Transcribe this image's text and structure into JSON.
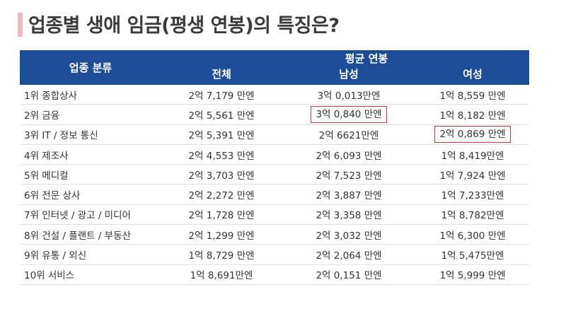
{
  "title": "업종별 생애 임금(평생 연봉)의 특징은?",
  "header": {
    "category": "업종 분류",
    "average": "평균 연봉",
    "total": "전체",
    "male": "남성",
    "female": "여성"
  },
  "rows": [
    {
      "name": "1위 종합상사",
      "total": "2억 7,179 만엔",
      "male": "3억 0,013만엔",
      "female": "1억 8,559 만엔"
    },
    {
      "name": "2위 금융",
      "total": "2억 5,561 만엔",
      "male": "3억 0,840 만엔",
      "female": "1억 8,182 만엔"
    },
    {
      "name": "3위 IT / 정보 통신",
      "total": "2억 5,391 만엔",
      "male": "2억 6621만엔",
      "female": "2억  0,869 만엔"
    },
    {
      "name": "4위 제조사",
      "total": "2억 4,553 만엔",
      "male": "2억 6,093 만엔",
      "female": "1억 8,419만엔"
    },
    {
      "name": "5위 메디컬",
      "total": "2억 3,703 만엔",
      "male": "2억 7,523 만엔",
      "female": "1억 7,924 만엔"
    },
    {
      "name": "6위 전문 상사",
      "total": "2억 2,272 만엔",
      "male": "2억 3,887 만엔",
      "female": "1억 7,233만엔"
    },
    {
      "name": "7위 인터넷 / 광고 / 미디어",
      "total": "2억 1,728 만엔",
      "male": "2억 3,358 만엔",
      "female": "1억 8,782만엔"
    },
    {
      "name": "8위 건설 / 플랜트 / 부동산",
      "total": "2억 1,299 만엔",
      "male": "2억 3,032 만엔",
      "female": "1억 6,300 만엔"
    },
    {
      "name": "9위 유통 / 외신",
      "total": "1억 8,729 만엔",
      "male": "2억 2,064 만엔",
      "female": "1억 5,475만엔"
    },
    {
      "name": "10위 서비스",
      "total": "1억 8,691만엔",
      "male": "2억 0,151 만엔",
      "female": "1억 5,999 만엔"
    }
  ],
  "colors": {
    "header_bg": "#1c4d96",
    "highlight_border": "#e03030",
    "title_accent": "#f2b8bd"
  }
}
